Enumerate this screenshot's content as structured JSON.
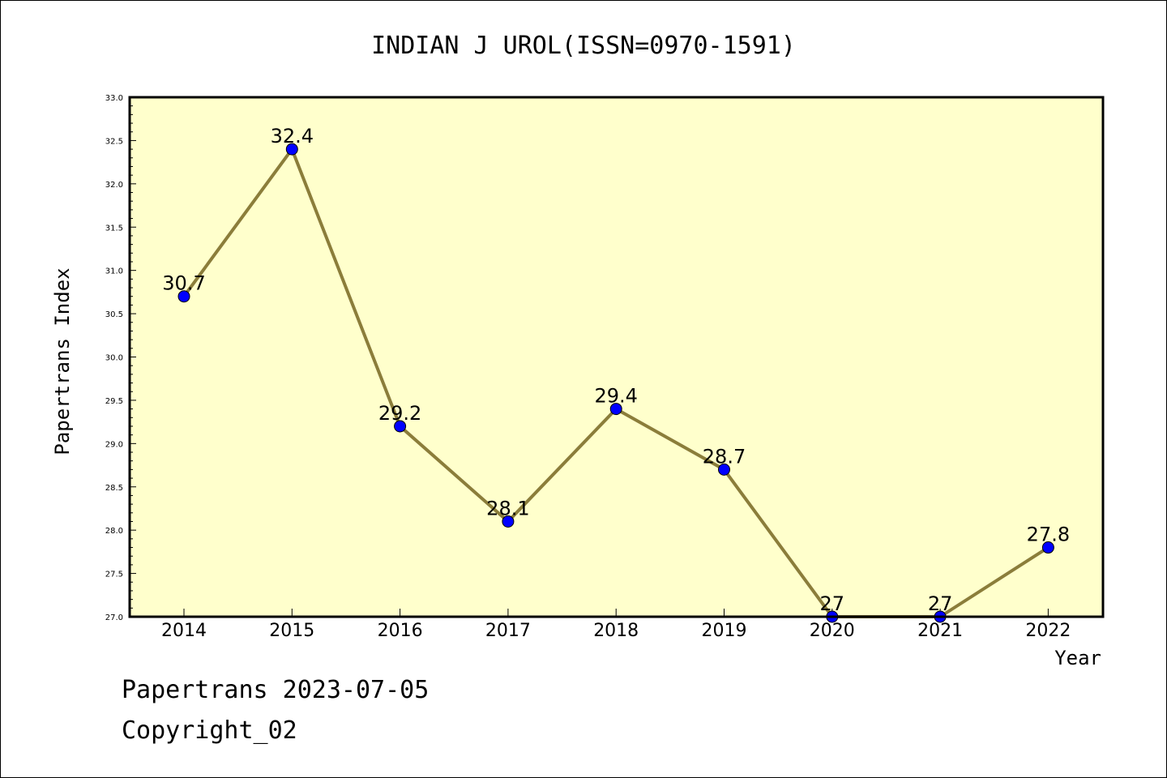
{
  "chart_data": {
    "type": "line",
    "title": "INDIAN J UROL(ISSN=0970-1591)",
    "xlabel": "Year",
    "ylabel": "Papertrans Index",
    "categories": [
      "2014",
      "2015",
      "2016",
      "2017",
      "2018",
      "2019",
      "2020",
      "2021",
      "2022"
    ],
    "series": [
      {
        "values": [
          30.7,
          32.4,
          29.2,
          28.1,
          29.4,
          28.7,
          27.0,
          27.0,
          27.8
        ],
        "labels": [
          "30.7",
          "32.4",
          "29.2",
          "28.1",
          "29.4",
          "28.7",
          "27",
          "27",
          "27.8"
        ]
      }
    ],
    "ylim": [
      27.0,
      33.0
    ],
    "yticks": [
      "27.0",
      "27.5",
      "28.0",
      "28.5",
      "29.0",
      "29.5",
      "30.0",
      "30.5",
      "31.0",
      "31.5",
      "32.0",
      "32.5",
      "33.0"
    ],
    "grid": false,
    "colors": {
      "plot_background": "#ffffcc",
      "line": "#8b7d3a",
      "marker": "#0000ff"
    }
  },
  "footer": {
    "line1": "Papertrans 2023-07-05",
    "line2": "Copyright_02"
  }
}
